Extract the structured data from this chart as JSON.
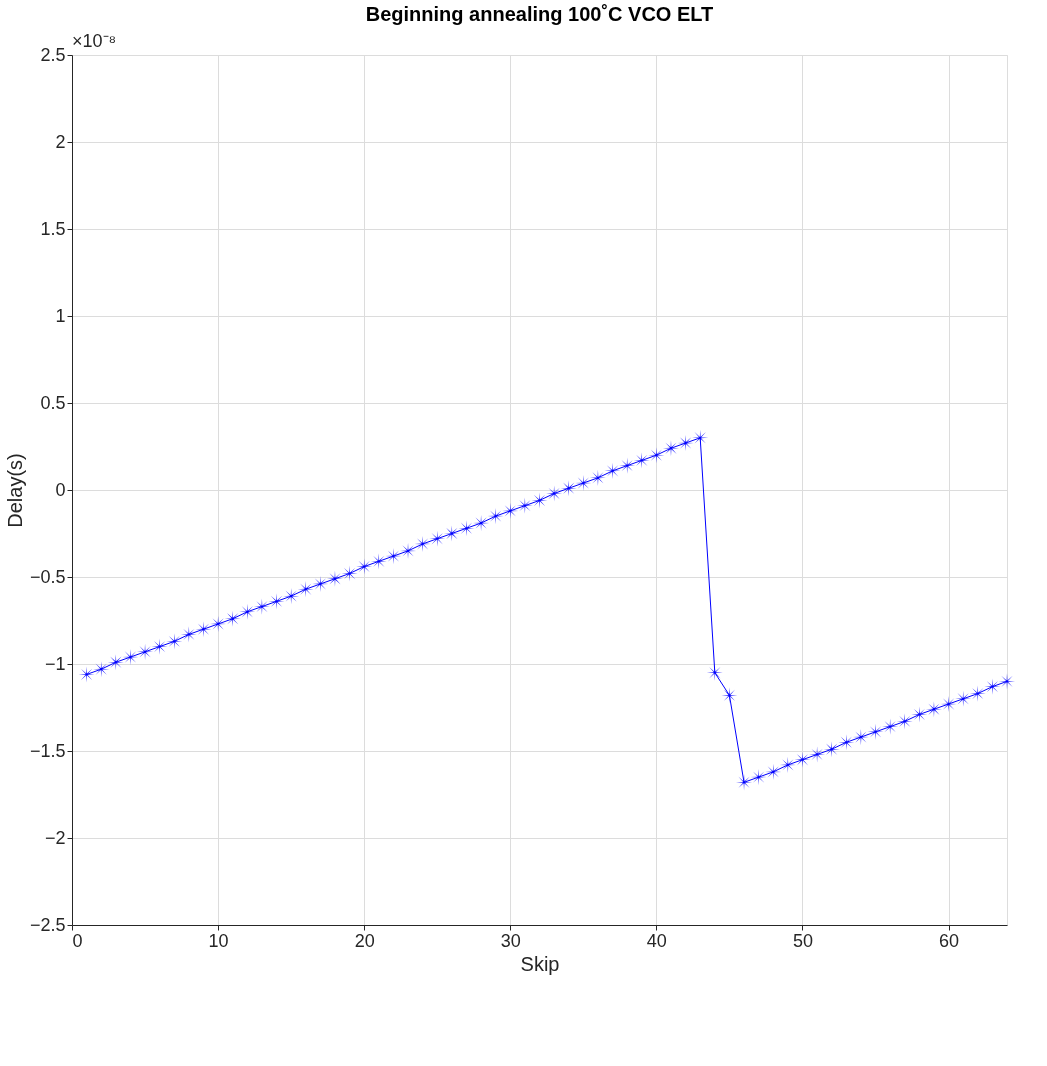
{
  "chart_data": {
    "type": "line",
    "title": "Beginning annealing 100˚C  VCO ELT",
    "xlabel": "Skip",
    "ylabel": "Delay(s)",
    "annotations": [
      "×10⁻⁸"
    ],
    "x": [
      1,
      2,
      3,
      4,
      5,
      6,
      7,
      8,
      9,
      10,
      11,
      12,
      13,
      14,
      15,
      16,
      17,
      18,
      19,
      20,
      21,
      22,
      23,
      24,
      25,
      26,
      27,
      28,
      29,
      30,
      31,
      32,
      33,
      34,
      35,
      36,
      37,
      38,
      39,
      40,
      41,
      42,
      43,
      44,
      45,
      46,
      47,
      48,
      49,
      50,
      51,
      52,
      53,
      54,
      55,
      56,
      57,
      58,
      59,
      60,
      61,
      62,
      63,
      64
    ],
    "series": [
      {
        "color": "#0000ff",
        "values": [
          -1.06,
          -1.03,
          -0.99,
          -0.96,
          -0.93,
          -0.9,
          -0.87,
          -0.83,
          -0.8,
          -0.77,
          -0.74,
          -0.7,
          -0.67,
          -0.64,
          -0.61,
          -0.57,
          -0.54,
          -0.51,
          -0.48,
          -0.44,
          -0.41,
          -0.38,
          -0.35,
          -0.31,
          -0.28,
          -0.25,
          -0.22,
          -0.19,
          -0.15,
          -0.12,
          -0.09,
          -0.06,
          -0.02,
          0.01,
          0.04,
          0.07,
          0.11,
          0.14,
          0.17,
          0.2,
          0.24,
          0.27,
          0.3,
          -1.05,
          -1.18,
          -1.68,
          -1.65,
          -1.62,
          -1.58,
          -1.55,
          -1.52,
          -1.49,
          -1.45,
          -1.42,
          -1.39,
          -1.36,
          -1.33,
          -1.29,
          -1.26,
          -1.23,
          -1.2,
          -1.17,
          -1.13,
          -1.1
        ]
      }
    ],
    "xlim": [
      0,
      64
    ],
    "xticks": [
      0,
      10,
      20,
      30,
      40,
      50,
      60
    ],
    "ylim": [
      -2.5,
      2.5
    ],
    "yticks": [
      -2.5,
      -2,
      -1.5,
      -1,
      -0.5,
      0,
      0.5,
      1,
      1.5,
      2,
      2.5
    ],
    "grid": true,
    "marker": "star",
    "line_style": "solid"
  }
}
